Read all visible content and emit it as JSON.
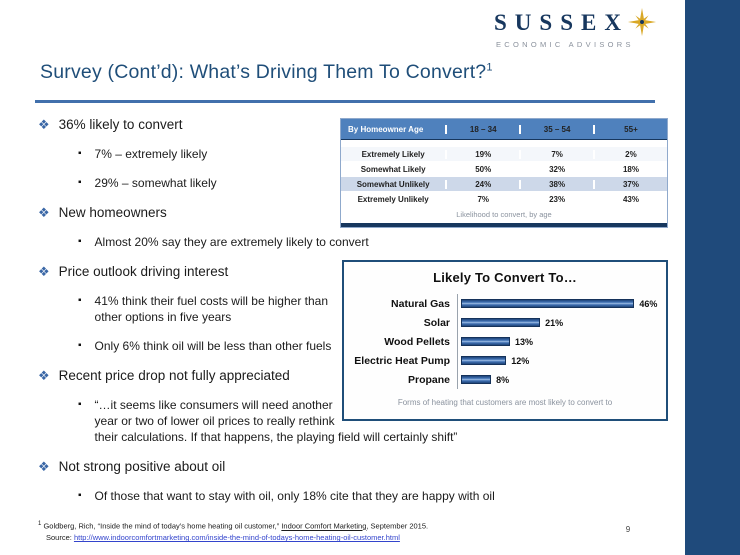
{
  "colors": {
    "navy_dark": "#17375e",
    "title_blue": "#1f4e79",
    "rule_blue": "#4170ac",
    "edge_bar_navy": "#1f4a7b",
    "table_header_blue": "#4f81bd",
    "table_band_blue": "#cdd8e9",
    "bullet_blue": "#3a67a6",
    "link_blue": "#3344cc",
    "logo_gold": "#d9a826"
  },
  "icons": {
    "bullet_level1": "❖",
    "bullet_level2": "▪",
    "logo_compass": "compass-rose"
  },
  "logo": {
    "name": "SUSSEX",
    "tagline": "ECONOMIC ADVISORS"
  },
  "slide": {
    "title": "Survey (Cont’d): What’s Driving Them To Convert?",
    "title_superscript": "1",
    "page_number": "9"
  },
  "bullets": [
    {
      "level": 1,
      "lines": [
        "36% likely to convert"
      ]
    },
    {
      "level": 2,
      "lines": [
        "7% – extremely likely"
      ]
    },
    {
      "level": 2,
      "lines": [
        "29% – somewhat likely"
      ]
    },
    {
      "level": 1,
      "lines": [
        "New homeowners"
      ]
    },
    {
      "level": 2,
      "lines": [
        "Almost 20% say they are extremely likely to convert"
      ]
    },
    {
      "level": 1,
      "lines": [
        "Price outlook driving interest"
      ]
    },
    {
      "level": 2,
      "lines": [
        "41% think their fuel costs will be higher than",
        "other options in five years"
      ]
    },
    {
      "level": 2,
      "lines": [
        "Only 6% think oil will be less than other fuels"
      ]
    },
    {
      "level": 1,
      "lines": [
        "Recent price drop not fully appreciated"
      ]
    },
    {
      "level": 2,
      "lines": [
        "“…it seems like consumers will need another",
        "year or two of lower oil prices to really rethink",
        "their calculations. If that happens, the playing field will certainly shift”"
      ]
    },
    {
      "level": 1,
      "lines": [
        "Not strong positive about oil"
      ]
    },
    {
      "level": 2,
      "lines": [
        "Of those that want to stay with oil, only 18% cite that they are happy with oil"
      ]
    }
  ],
  "age_table": {
    "headers": [
      "By Homeowner Age",
      "18 – 34",
      "35 – 54",
      "55+"
    ],
    "rows": [
      {
        "label": "Extremely Likely",
        "values": [
          "19%",
          "7%",
          "2%"
        ]
      },
      {
        "label": "Somewhat Likely",
        "values": [
          "50%",
          "32%",
          "18%"
        ]
      },
      {
        "label": "Somewhat Unlikely",
        "values": [
          "24%",
          "38%",
          "37%"
        ]
      },
      {
        "label": "Extremely Unlikely",
        "values": [
          "7%",
          "23%",
          "43%"
        ]
      }
    ],
    "caption": "Likelihood to convert, by age"
  },
  "chart_data": {
    "type": "bar",
    "orientation": "horizontal",
    "title": "Likely To Convert To…",
    "categories": [
      "Natural Gas",
      "Solar",
      "Wood Pellets",
      "Electric Heat Pump",
      "Propane"
    ],
    "values": [
      46,
      21,
      13,
      12,
      8
    ],
    "value_labels": [
      "46%",
      "21%",
      "13%",
      "12%",
      "8%"
    ],
    "xlim": [
      0,
      50
    ],
    "grid": false,
    "legend": false,
    "bar_color": "#2e5c9e",
    "caption": "Forms of heating that customers are most likely to convert to"
  },
  "footnote": {
    "marker": "1",
    "citation_prefix": "Goldberg, Rich, “Inside the mind of today’s home heating oil customer,” ",
    "publication": "Indoor Comfort Marketing",
    "citation_suffix": ", September 2015.",
    "source_label": "Source: ",
    "source_url": "http://www.indoorcomfortmarketing.com/inside-the-mind-of-todays-home-heating-oil-customer.html"
  }
}
